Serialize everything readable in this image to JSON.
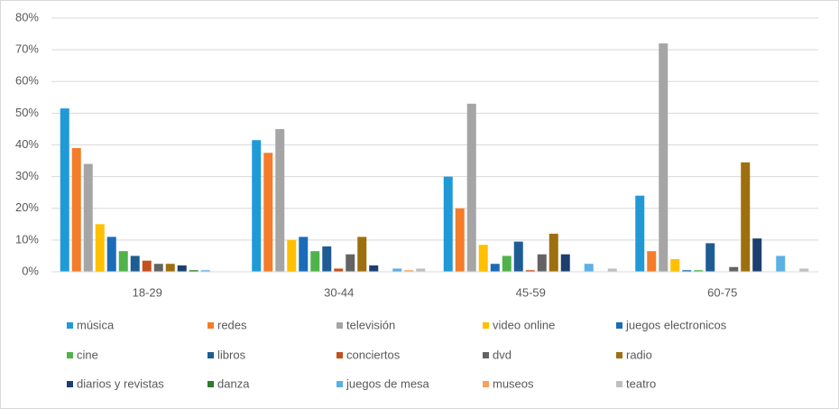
{
  "chart_data": {
    "type": "bar",
    "categories": [
      "18-29",
      "30-44",
      "45-59",
      "60-75"
    ],
    "ylim": [
      0,
      80
    ],
    "yticks": [
      {
        "value": 0,
        "label": "0%"
      },
      {
        "value": 10,
        "label": "10%"
      },
      {
        "value": 20,
        "label": "20%"
      },
      {
        "value": 30,
        "label": "30%"
      },
      {
        "value": 40,
        "label": "40%"
      },
      {
        "value": 50,
        "label": "50%"
      },
      {
        "value": 60,
        "label": "60%"
      },
      {
        "value": 70,
        "label": "70%"
      },
      {
        "value": 80,
        "label": "80%"
      }
    ],
    "grid": true,
    "legend": "bottom",
    "series": [
      {
        "name": "música",
        "color": "#1f9ad6",
        "values": [
          51.5,
          41.5,
          30,
          24
        ]
      },
      {
        "name": "redes",
        "color": "#f57c2b",
        "values": [
          39,
          37.5,
          20,
          6.5
        ]
      },
      {
        "name": "televisión",
        "color": "#a5a5a5",
        "values": [
          34,
          45,
          53,
          72
        ]
      },
      {
        "name": "video online",
        "color": "#ffc000",
        "values": [
          15,
          10,
          8.5,
          4
        ]
      },
      {
        "name": "juegos electronicos",
        "color": "#1a6cb8",
        "values": [
          11,
          11,
          2.5,
          0.5
        ]
      },
      {
        "name": "cine",
        "color": "#4fb34a",
        "values": [
          6.5,
          6.5,
          5,
          0.5
        ]
      },
      {
        "name": "libros",
        "color": "#1e5d94",
        "values": [
          5,
          8,
          9.5,
          9
        ]
      },
      {
        "name": "conciertos",
        "color": "#c4501b",
        "values": [
          3.5,
          1,
          0.5,
          0
        ]
      },
      {
        "name": "dvd",
        "color": "#636363",
        "values": [
          2.5,
          5.5,
          5.5,
          1.5
        ]
      },
      {
        "name": "radio",
        "color": "#9e6f0f",
        "values": [
          2.5,
          11,
          12,
          34.5
        ]
      },
      {
        "name": "diarios y revistas",
        "color": "#1c3f6e",
        "values": [
          2,
          2,
          5.5,
          10.5
        ]
      },
      {
        "name": "danza",
        "color": "#2f7a2c",
        "values": [
          0.5,
          0,
          0,
          0
        ]
      },
      {
        "name": "juegos de mesa",
        "color": "#5bb0e4",
        "values": [
          0.5,
          1,
          2.5,
          5
        ]
      },
      {
        "name": "museos",
        "color": "#f6a25e",
        "values": [
          0,
          0.5,
          0,
          0
        ]
      },
      {
        "name": "teatro",
        "color": "#bfbfbf",
        "values": [
          0,
          1,
          1,
          1
        ]
      }
    ]
  }
}
